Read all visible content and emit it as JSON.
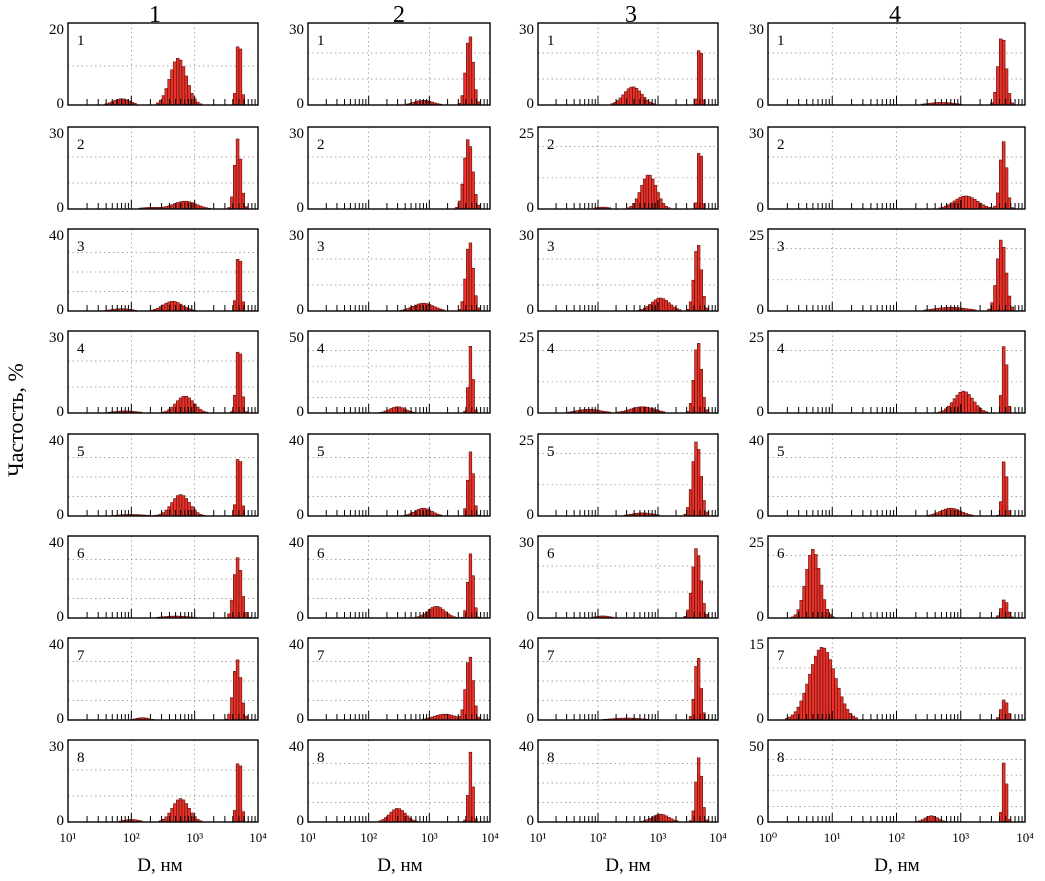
{
  "figure": {
    "y_axis_label": "Частость, %",
    "x_axis_label": "D, нм",
    "column_titles": [
      "1",
      "2",
      "3",
      "4"
    ],
    "row_labels": [
      "1",
      "2",
      "3",
      "4",
      "5",
      "6",
      "7",
      "8"
    ],
    "bar_color": "#e8322a",
    "bar_edge_color": "#5a0f0c"
  },
  "chart_data": [
    {
      "type": "bar",
      "title": "1",
      "xlabel": "D, нм",
      "ylabel": "Частость, %",
      "x_scale": "log",
      "xlim": [
        10,
        10000
      ],
      "x_tick_labels": [
        "10¹",
        "10²",
        "10³",
        "10⁴"
      ],
      "grid": true,
      "panels": [
        {
          "label": "1",
          "ymax": 20,
          "peaks": [
            {
              "d": 70,
              "h": 1.6,
              "w": 0.13
            },
            {
              "d": 550,
              "h": 12,
              "w": 0.13
            },
            {
              "d": 5000,
              "h": 18,
              "w": 0.035
            }
          ]
        },
        {
          "label": "2",
          "ymax": 30,
          "peaks": [
            {
              "d": 200,
              "h": 0.6,
              "w": 0.15
            },
            {
              "d": 700,
              "h": 3,
              "w": 0.18
            },
            {
              "d": 4800,
              "h": 27,
              "w": 0.05
            }
          ]
        },
        {
          "label": "3",
          "ymax": 40,
          "peaks": [
            {
              "d": 70,
              "h": 1.2,
              "w": 0.15
            },
            {
              "d": 450,
              "h": 5,
              "w": 0.15
            },
            {
              "d": 5000,
              "h": 32,
              "w": 0.035
            }
          ]
        },
        {
          "label": "4",
          "ymax": 30,
          "peaks": [
            {
              "d": 80,
              "h": 0.8,
              "w": 0.18
            },
            {
              "d": 700,
              "h": 6.5,
              "w": 0.14
            },
            {
              "d": 5000,
              "h": 27,
              "w": 0.04
            }
          ]
        },
        {
          "label": "5",
          "ymax": 40,
          "peaks": [
            {
              "d": 100,
              "h": 0.8,
              "w": 0.2
            },
            {
              "d": 600,
              "h": 11,
              "w": 0.14
            },
            {
              "d": 5000,
              "h": 35,
              "w": 0.035
            }
          ]
        },
        {
          "label": "6",
          "ymax": 40,
          "peaks": [
            {
              "d": 500,
              "h": 1,
              "w": 0.2
            },
            {
              "d": 4800,
              "h": 31,
              "w": 0.06
            }
          ]
        },
        {
          "label": "7",
          "ymax": 40,
          "peaks": [
            {
              "d": 150,
              "h": 1.2,
              "w": 0.1
            },
            {
              "d": 4700,
              "h": 31,
              "w": 0.06
            }
          ]
        },
        {
          "label": "8",
          "ymax": 30,
          "peaks": [
            {
              "d": 100,
              "h": 1,
              "w": 0.12
            },
            {
              "d": 600,
              "h": 9,
              "w": 0.13
            },
            {
              "d": 5000,
              "h": 27,
              "w": 0.035
            }
          ]
        }
      ]
    },
    {
      "type": "bar",
      "title": "2",
      "xlabel": "D, нм",
      "ylabel": "Частость, %",
      "x_scale": "log",
      "xlim": [
        10,
        10000
      ],
      "x_tick_labels": [
        "10¹",
        "10²",
        "10³",
        "10⁴"
      ],
      "grid": true,
      "panels": [
        {
          "label": "1",
          "ymax": 30,
          "peaks": [
            {
              "d": 800,
              "h": 1.8,
              "w": 0.15
            },
            {
              "d": 4600,
              "h": 27,
              "w": 0.06
            }
          ]
        },
        {
          "label": "2",
          "ymax": 30,
          "peaks": [
            {
              "d": 4400,
              "h": 27,
              "w": 0.07
            }
          ]
        },
        {
          "label": "3",
          "ymax": 30,
          "peaks": [
            {
              "d": 800,
              "h": 3,
              "w": 0.17
            },
            {
              "d": 4600,
              "h": 27,
              "w": 0.06
            }
          ]
        },
        {
          "label": "4",
          "ymax": 50,
          "peaks": [
            {
              "d": 300,
              "h": 4,
              "w": 0.13
            },
            {
              "d": 4800,
              "h": 43,
              "w": 0.035
            }
          ]
        },
        {
          "label": "5",
          "ymax": 40,
          "peaks": [
            {
              "d": 800,
              "h": 4,
              "w": 0.14
            },
            {
              "d": 4800,
              "h": 33,
              "w": 0.045
            }
          ]
        },
        {
          "label": "6",
          "ymax": 40,
          "peaks": [
            {
              "d": 1300,
              "h": 6,
              "w": 0.14
            },
            {
              "d": 4800,
              "h": 33,
              "w": 0.045
            }
          ]
        },
        {
          "label": "7",
          "ymax": 40,
          "peaks": [
            {
              "d": 1800,
              "h": 3,
              "w": 0.18
            },
            {
              "d": 4600,
              "h": 33,
              "w": 0.06
            }
          ]
        },
        {
          "label": "8",
          "ymax": 40,
          "peaks": [
            {
              "d": 300,
              "h": 7,
              "w": 0.13
            },
            {
              "d": 4800,
              "h": 36,
              "w": 0.035
            }
          ]
        }
      ]
    },
    {
      "type": "bar",
      "title": "3",
      "xlabel": "D, нм",
      "ylabel": "Частость, %",
      "x_scale": "log",
      "xlim": [
        10,
        10000
      ],
      "x_tick_labels": [
        "10¹",
        "10²",
        "10³",
        "10⁴"
      ],
      "grid": true,
      "panels": [
        {
          "label": "1",
          "ymax": 30,
          "peaks": [
            {
              "d": 380,
              "h": 7,
              "w": 0.15
            },
            {
              "d": 5000,
              "h": 27,
              "w": 0.03
            }
          ]
        },
        {
          "label": "2",
          "ymax": 25,
          "peaks": [
            {
              "d": 120,
              "h": 0.6,
              "w": 0.12
            },
            {
              "d": 700,
              "h": 11,
              "w": 0.13
            },
            {
              "d": 5000,
              "h": 23,
              "w": 0.03
            }
          ]
        },
        {
          "label": "3",
          "ymax": 30,
          "peaks": [
            {
              "d": 1100,
              "h": 5,
              "w": 0.15
            },
            {
              "d": 4600,
              "h": 26,
              "w": 0.06
            }
          ]
        },
        {
          "label": "4",
          "ymax": 25,
          "peaks": [
            {
              "d": 70,
              "h": 1.2,
              "w": 0.2
            },
            {
              "d": 550,
              "h": 2,
              "w": 0.2
            },
            {
              "d": 4600,
              "h": 23,
              "w": 0.06
            }
          ]
        },
        {
          "label": "5",
          "ymax": 25,
          "peaks": [
            {
              "d": 550,
              "h": 1,
              "w": 0.18
            },
            {
              "d": 4400,
              "h": 24,
              "w": 0.07
            }
          ]
        },
        {
          "label": "6",
          "ymax": 30,
          "peaks": [
            {
              "d": 120,
              "h": 0.8,
              "w": 0.12
            },
            {
              "d": 4400,
              "h": 27,
              "w": 0.07
            }
          ]
        },
        {
          "label": "7",
          "ymax": 40,
          "peaks": [
            {
              "d": 300,
              "h": 1,
              "w": 0.25
            },
            {
              "d": 4600,
              "h": 33,
              "w": 0.05
            }
          ]
        },
        {
          "label": "8",
          "ymax": 40,
          "peaks": [
            {
              "d": 1100,
              "h": 4,
              "w": 0.14
            },
            {
              "d": 4800,
              "h": 33,
              "w": 0.05
            }
          ]
        }
      ]
    },
    {
      "type": "bar",
      "title": "4",
      "xlabel": "D, нм",
      "ylabel": "Частость, %",
      "x_scale": "log",
      "xlim": [
        1,
        10000
      ],
      "x_tick_labels": [
        "10⁰",
        "10¹",
        "10²",
        "10³",
        "10⁴"
      ],
      "grid": true,
      "panels": [
        {
          "label": "1",
          "ymax": 30,
          "peaks": [
            {
              "d": 500,
              "h": 1,
              "w": 0.2
            },
            {
              "d": 4400,
              "h": 27,
              "w": 0.06
            }
          ]
        },
        {
          "label": "2",
          "ymax": 30,
          "peaks": [
            {
              "d": 1200,
              "h": 5,
              "w": 0.18
            },
            {
              "d": 4600,
              "h": 26,
              "w": 0.05
            }
          ]
        },
        {
          "label": "3",
          "ymax": 25,
          "peaks": [
            {
              "d": 700,
              "h": 1.2,
              "w": 0.25
            },
            {
              "d": 4300,
              "h": 23,
              "w": 0.07
            }
          ]
        },
        {
          "label": "4",
          "ymax": 25,
          "peaks": [
            {
              "d": 1100,
              "h": 7,
              "w": 0.15
            },
            {
              "d": 4800,
              "h": 23,
              "w": 0.035
            }
          ]
        },
        {
          "label": "5",
          "ymax": 40,
          "peaks": [
            {
              "d": 700,
              "h": 4,
              "w": 0.16
            },
            {
              "d": 4800,
              "h": 30,
              "w": 0.035
            }
          ]
        },
        {
          "label": "6",
          "ymax": 25,
          "peaks": [
            {
              "d": 5,
              "h": 22,
              "w": 0.11
            },
            {
              "d": 4800,
              "h": 6,
              "w": 0.05
            }
          ]
        },
        {
          "label": "7",
          "ymax": 15,
          "peaks": [
            {
              "d": 7,
              "h": 14,
              "w": 0.2
            },
            {
              "d": 4800,
              "h": 4,
              "w": 0.05
            }
          ]
        },
        {
          "label": "8",
          "ymax": 50,
          "peaks": [
            {
              "d": 350,
              "h": 4,
              "w": 0.1
            },
            {
              "d": 4800,
              "h": 42,
              "w": 0.03
            }
          ]
        }
      ]
    }
  ]
}
